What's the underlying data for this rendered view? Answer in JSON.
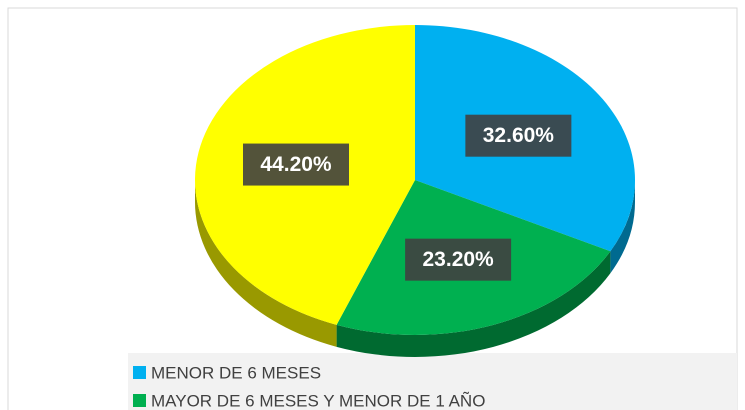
{
  "chart_data": {
    "type": "pie",
    "categories": [
      "MENOR DE 6 MESES",
      "MAYOR DE 6 MESES Y MENOR DE 1 AÑO",
      null
    ],
    "values": [
      32.6,
      23.2,
      44.2
    ],
    "value_labels": [
      "32.60%",
      "23.20%",
      "44.20%"
    ],
    "colors": [
      "#00b0f0",
      "#00b050",
      "#ffff00"
    ]
  }
}
